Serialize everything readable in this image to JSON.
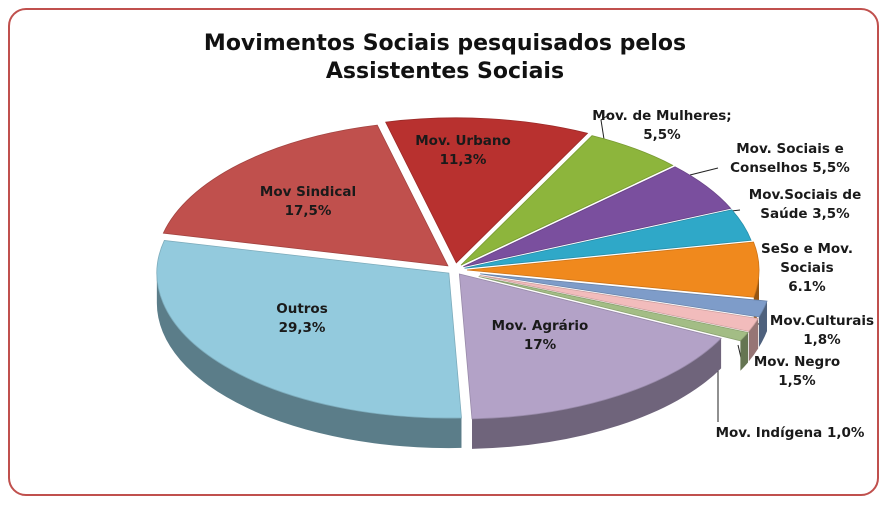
{
  "chart_data": {
    "type": "pie",
    "title": "Movimentos Sociais pesquisados pelos Assistentes Sociais",
    "categories": [
      "Mov. Urbano",
      "Mov. de Mulheres;",
      "Mov. Sociais e Conselhos",
      "Mov.Sociais de Saúde",
      "SeSo e Mov. Sociais",
      "Mov.Culturais",
      "Mov. Negro",
      "Mov. Indígena",
      "Mov. Agrário",
      "Outros",
      "Mov Sindical"
    ],
    "values": [
      11.3,
      5.5,
      5.5,
      3.5,
      6.1,
      1.8,
      1.5,
      1.0,
      17,
      29.3,
      17.5
    ],
    "value_labels": [
      "11,3%",
      "5,5%",
      "5,5%",
      "3,5%",
      "6.1%",
      "1,8%",
      "1,5%",
      "1,0%",
      "17%",
      "29,3%",
      "17,5%"
    ],
    "colors": [
      "#b8312f",
      "#8db53c",
      "#7a4f9e",
      "#2fa8c8",
      "#f0891d",
      "#7e9cc9",
      "#f2bcbc",
      "#a3bd85",
      "#b3a2c7",
      "#93cadd",
      "#c0504d"
    ]
  }
}
